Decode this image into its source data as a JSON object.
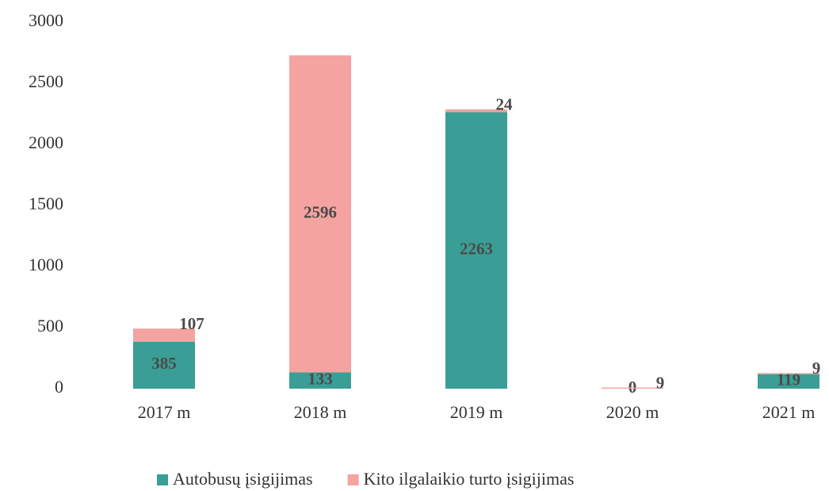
{
  "chart_data": {
    "type": "stacked_bar",
    "categories": [
      "2017 m",
      "2018 m",
      "2019 m",
      "2020 m",
      "2021 m"
    ],
    "series": [
      {
        "name": "Autobusų įsigijimas",
        "color": "#3a9e96",
        "values": [
          385,
          133,
          2263,
          0,
          119
        ]
      },
      {
        "name": "Kito ilgalaikio turto įsigijimas",
        "color": "#f4a3a0",
        "values": [
          107,
          2596,
          24,
          9,
          9
        ]
      }
    ],
    "ylim": [
      0,
      3000
    ],
    "yticks": [
      0,
      500,
      1000,
      1500,
      2000,
      2500,
      3000
    ],
    "grid": false,
    "legend": "bottom"
  }
}
